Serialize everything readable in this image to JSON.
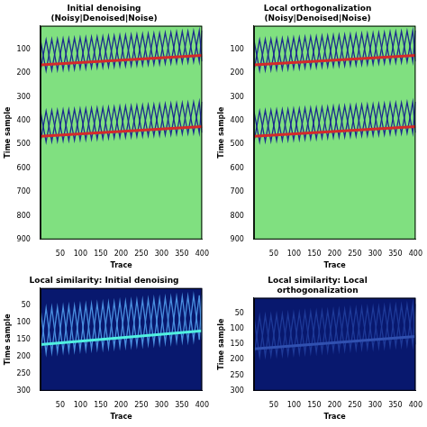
{
  "chart_data": [
    {
      "type": "line",
      "title": "Initial denoising (Noisy|Denoised|Noise)",
      "xlabel": "Trace",
      "ylabel": "Time sample",
      "xlim": [
        1,
        400
      ],
      "xticks": [
        50,
        100,
        150,
        200,
        250,
        300,
        350,
        400
      ],
      "ylim": [
        0,
        900
      ],
      "yticks": [
        100,
        200,
        300,
        400,
        500,
        600,
        700,
        800,
        900
      ],
      "grid": false,
      "series": [
        {
          "color": "#d42a2a",
          "x": [
            1,
            400
          ],
          "values": [
            165,
            125
          ]
        },
        {
          "color": "#d42a2a",
          "x": [
            1,
            400
          ],
          "values": [
            465,
            425
          ]
        },
        {
          "color": "#1c2a8e",
          "x": [
            1,
            15,
            29,
            43,
            57,
            71,
            85,
            99,
            113,
            127,
            141,
            155,
            169,
            183,
            197,
            211,
            225,
            239,
            253,
            267,
            281,
            295,
            309,
            323,
            337,
            351,
            365,
            379,
            393,
            400
          ],
          "values": [
            60,
            189,
            57,
            186,
            54,
            183,
            52,
            180,
            49,
            177,
            46,
            175,
            43,
            172,
            40,
            169,
            38,
            166,
            35,
            163,
            32,
            161,
            29,
            158,
            26,
            155,
            24,
            152,
            21,
            150
          ]
        },
        {
          "color": "#1c2a8e",
          "x": [
            1,
            15,
            29,
            43,
            57,
            71,
            85,
            99,
            113,
            127,
            141,
            155,
            169,
            183,
            197,
            211,
            225,
            239,
            253,
            267,
            281,
            295,
            309,
            323,
            337,
            351,
            365,
            379,
            393,
            400
          ],
          "values": [
            190,
            59,
            187,
            56,
            184,
            53,
            182,
            50,
            179,
            47,
            176,
            45,
            173,
            42,
            170,
            39,
            168,
            36,
            165,
            33,
            162,
            31,
            159,
            28,
            156,
            25,
            154,
            22,
            151,
            20
          ]
        },
        {
          "color": "#1c2a8e",
          "x": [
            1,
            15,
            29,
            43,
            57,
            71,
            85,
            99,
            113,
            127,
            141,
            155,
            169,
            183,
            197,
            211,
            225,
            239,
            253,
            267,
            281,
            295,
            309,
            323,
            337,
            351,
            365,
            379,
            393,
            400
          ],
          "values": [
            360,
            489,
            357,
            486,
            354,
            483,
            352,
            480,
            349,
            477,
            346,
            475,
            343,
            472,
            340,
            469,
            338,
            466,
            335,
            463,
            332,
            461,
            329,
            458,
            326,
            455,
            324,
            452,
            321,
            450
          ]
        },
        {
          "color": "#1c2a8e",
          "x": [
            1,
            15,
            29,
            43,
            57,
            71,
            85,
            99,
            113,
            127,
            141,
            155,
            169,
            183,
            197,
            211,
            225,
            239,
            253,
            267,
            281,
            295,
            309,
            323,
            337,
            351,
            365,
            379,
            393,
            400
          ],
          "values": [
            490,
            359,
            487,
            356,
            484,
            353,
            482,
            350,
            479,
            347,
            476,
            345,
            473,
            342,
            470,
            339,
            468,
            336,
            465,
            333,
            462,
            331,
            459,
            328,
            456,
            325,
            454,
            322,
            451,
            320
          ]
        }
      ]
    },
    {
      "type": "line",
      "title": "Local orthogonalization (Noisy|Denoised|Noise)",
      "xlabel": "Trace",
      "ylabel": "Time sample",
      "xlim": [
        1,
        400
      ],
      "xticks": [
        50,
        100,
        150,
        200,
        250,
        300,
        350,
        400
      ],
      "ylim": [
        0,
        900
      ],
      "yticks": [
        100,
        200,
        300,
        400,
        500,
        600,
        700,
        800,
        900
      ],
      "grid": false,
      "series": [
        {
          "color": "#d42a2a",
          "x": [
            1,
            400
          ],
          "values": [
            165,
            125
          ]
        },
        {
          "color": "#d42a2a",
          "x": [
            1,
            400
          ],
          "values": [
            465,
            425
          ]
        },
        {
          "color": "#1c2a8e",
          "x": [
            1,
            15,
            29,
            43,
            57,
            71,
            85,
            99,
            113,
            127,
            141,
            155,
            169,
            183,
            197,
            211,
            225,
            239,
            253,
            267,
            281,
            295,
            309,
            323,
            337,
            351,
            365,
            379,
            393,
            400
          ],
          "values": [
            60,
            189,
            57,
            186,
            54,
            183,
            52,
            180,
            49,
            177,
            46,
            175,
            43,
            172,
            40,
            169,
            38,
            166,
            35,
            163,
            32,
            161,
            29,
            158,
            26,
            155,
            24,
            152,
            21,
            150
          ]
        },
        {
          "color": "#1c2a8e",
          "x": [
            1,
            15,
            29,
            43,
            57,
            71,
            85,
            99,
            113,
            127,
            141,
            155,
            169,
            183,
            197,
            211,
            225,
            239,
            253,
            267,
            281,
            295,
            309,
            323,
            337,
            351,
            365,
            379,
            393,
            400
          ],
          "values": [
            190,
            59,
            187,
            56,
            184,
            53,
            182,
            50,
            179,
            47,
            176,
            45,
            173,
            42,
            170,
            39,
            168,
            36,
            165,
            33,
            162,
            31,
            159,
            28,
            156,
            25,
            154,
            22,
            151,
            20
          ]
        },
        {
          "color": "#1c2a8e",
          "x": [
            1,
            15,
            29,
            43,
            57,
            71,
            85,
            99,
            113,
            127,
            141,
            155,
            169,
            183,
            197,
            211,
            225,
            239,
            253,
            267,
            281,
            295,
            309,
            323,
            337,
            351,
            365,
            379,
            393,
            400
          ],
          "values": [
            360,
            489,
            357,
            486,
            354,
            483,
            352,
            480,
            349,
            477,
            346,
            475,
            343,
            472,
            340,
            469,
            338,
            466,
            335,
            463,
            332,
            461,
            329,
            458,
            326,
            455,
            324,
            452,
            321,
            450
          ]
        },
        {
          "color": "#1c2a8e",
          "x": [
            1,
            15,
            29,
            43,
            57,
            71,
            85,
            99,
            113,
            127,
            141,
            155,
            169,
            183,
            197,
            211,
            225,
            239,
            253,
            267,
            281,
            295,
            309,
            323,
            337,
            351,
            365,
            379,
            393,
            400
          ],
          "values": [
            490,
            359,
            487,
            356,
            484,
            353,
            482,
            350,
            479,
            347,
            476,
            345,
            473,
            342,
            470,
            339,
            468,
            336,
            465,
            333,
            462,
            331,
            459,
            328,
            456,
            325,
            454,
            322,
            451,
            320
          ]
        }
      ]
    },
    {
      "type": "line",
      "title": "Local similarity: Initial denoising",
      "xlabel": "Trace",
      "ylabel": "Time sample",
      "xlim": [
        1,
        400
      ],
      "xticks": [
        50,
        100,
        150,
        200,
        250,
        300,
        350,
        400
      ],
      "ylim": [
        0,
        300
      ],
      "yticks": [
        50,
        100,
        150,
        200,
        250,
        300
      ],
      "grid": false,
      "series": [
        {
          "color": "#50f0e0",
          "x": [
            1,
            400
          ],
          "values": [
            165,
            125
          ]
        },
        {
          "color": "#4a90e0",
          "x": [
            1,
            15,
            29,
            43,
            57,
            71,
            85,
            99,
            113,
            127,
            141,
            155,
            169,
            183,
            197,
            211,
            225,
            239,
            253,
            267,
            281,
            295,
            309,
            323,
            337,
            351,
            365,
            379,
            393,
            400
          ],
          "values": [
            60,
            189,
            57,
            186,
            54,
            183,
            52,
            180,
            49,
            177,
            46,
            175,
            43,
            172,
            40,
            169,
            38,
            166,
            35,
            163,
            32,
            161,
            29,
            158,
            26,
            155,
            24,
            152,
            21,
            150
          ]
        },
        {
          "color": "#4a90e0",
          "x": [
            1,
            15,
            29,
            43,
            57,
            71,
            85,
            99,
            113,
            127,
            141,
            155,
            169,
            183,
            197,
            211,
            225,
            239,
            253,
            267,
            281,
            295,
            309,
            323,
            337,
            351,
            365,
            379,
            393,
            400
          ],
          "values": [
            190,
            59,
            187,
            56,
            184,
            53,
            182,
            50,
            179,
            47,
            176,
            45,
            173,
            42,
            170,
            39,
            168,
            36,
            165,
            33,
            162,
            31,
            159,
            28,
            156,
            25,
            154,
            22,
            151,
            20
          ]
        }
      ]
    },
    {
      "type": "line",
      "title": "Local similarity: Local orthogonalization",
      "xlabel": "Trace",
      "ylabel": "Time sample",
      "xlim": [
        1,
        400
      ],
      "xticks": [
        50,
        100,
        150,
        200,
        250,
        300,
        350,
        400
      ],
      "ylim": [
        0,
        300
      ],
      "yticks": [
        50,
        100,
        150,
        200,
        250,
        300
      ],
      "grid": false,
      "series": [
        {
          "color": "#3050b0",
          "x": [
            1,
            400
          ],
          "values": [
            165,
            125
          ]
        },
        {
          "color": "#1e3a98",
          "x": [
            1,
            15,
            29,
            43,
            57,
            71,
            85,
            99,
            113,
            127,
            141,
            155,
            169,
            183,
            197,
            211,
            225,
            239,
            253,
            267,
            281,
            295,
            309,
            323,
            337,
            351,
            365,
            379,
            393,
            400
          ],
          "values": [
            60,
            189,
            57,
            186,
            54,
            183,
            52,
            180,
            49,
            177,
            46,
            175,
            43,
            172,
            40,
            169,
            38,
            166,
            35,
            163,
            32,
            161,
            29,
            158,
            26,
            155,
            24,
            152,
            21,
            150
          ]
        },
        {
          "color": "#1e3a98",
          "x": [
            1,
            15,
            29,
            43,
            57,
            71,
            85,
            99,
            113,
            127,
            141,
            155,
            169,
            183,
            197,
            211,
            225,
            239,
            253,
            267,
            281,
            295,
            309,
            323,
            337,
            351,
            365,
            379,
            393,
            400
          ],
          "values": [
            190,
            59,
            187,
            56,
            184,
            53,
            182,
            50,
            179,
            47,
            176,
            45,
            173,
            42,
            170,
            39,
            168,
            36,
            165,
            33,
            162,
            31,
            159,
            28,
            156,
            25,
            154,
            22,
            151,
            20
          ]
        }
      ]
    }
  ]
}
